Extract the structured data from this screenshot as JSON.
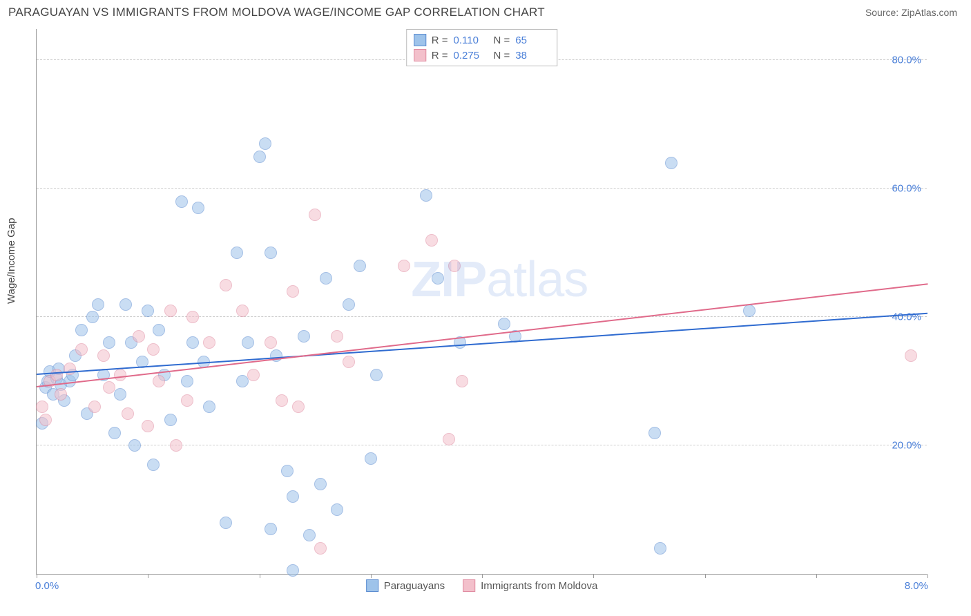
{
  "header": {
    "title": "PARAGUAYAN VS IMMIGRANTS FROM MOLDOVA WAGE/INCOME GAP CORRELATION CHART",
    "source": "Source: ZipAtlas.com"
  },
  "axes": {
    "ylabel": "Wage/Income Gap",
    "xlim": [
      0.0,
      8.0
    ],
    "ylim": [
      0.0,
      85.0
    ],
    "yticks": [
      20.0,
      40.0,
      60.0,
      80.0
    ],
    "ytick_labels": [
      "20.0%",
      "40.0%",
      "60.0%",
      "80.0%"
    ],
    "xtick_positions": [
      0.0,
      1.0,
      2.0,
      3.0,
      4.0,
      5.0,
      6.0,
      7.0,
      8.0
    ],
    "xtick_min_label": "0.0%",
    "xtick_max_label": "8.0%"
  },
  "style": {
    "background_color": "#ffffff",
    "grid_color": "#cccccc",
    "border_color": "#999999",
    "text_color": "#444444",
    "tick_color": "#4a7fd8",
    "point_radius": 9,
    "point_opacity": 0.55,
    "trend_width": 2
  },
  "series": [
    {
      "name": "Paraguayans",
      "fill_color": "#9ec3ea",
      "stroke_color": "#5a8bd0",
      "trend_color": "#2f6bd0",
      "r_label": "R =",
      "r_value": "0.110",
      "n_label": "N =",
      "n_value": "65",
      "trend": {
        "x1": 0.0,
        "y1": 31.0,
        "x2": 8.0,
        "y2": 40.5
      },
      "points": [
        {
          "x": 0.05,
          "y": 23.5
        },
        {
          "x": 0.08,
          "y": 29
        },
        {
          "x": 0.1,
          "y": 30
        },
        {
          "x": 0.12,
          "y": 31.5
        },
        {
          "x": 0.15,
          "y": 28
        },
        {
          "x": 0.18,
          "y": 30.5
        },
        {
          "x": 0.2,
          "y": 32
        },
        {
          "x": 0.22,
          "y": 29.5
        },
        {
          "x": 0.3,
          "y": 30
        },
        {
          "x": 0.35,
          "y": 34
        },
        {
          "x": 0.4,
          "y": 38
        },
        {
          "x": 0.45,
          "y": 25
        },
        {
          "x": 0.5,
          "y": 40
        },
        {
          "x": 0.55,
          "y": 42
        },
        {
          "x": 0.6,
          "y": 31
        },
        {
          "x": 0.65,
          "y": 36
        },
        {
          "x": 0.7,
          "y": 22
        },
        {
          "x": 0.8,
          "y": 42
        },
        {
          "x": 0.85,
          "y": 36
        },
        {
          "x": 0.88,
          "y": 20
        },
        {
          "x": 0.95,
          "y": 33
        },
        {
          "x": 1.0,
          "y": 41
        },
        {
          "x": 1.05,
          "y": 17
        },
        {
          "x": 1.1,
          "y": 38
        },
        {
          "x": 1.15,
          "y": 31
        },
        {
          "x": 1.2,
          "y": 24
        },
        {
          "x": 1.3,
          "y": 58
        },
        {
          "x": 1.35,
          "y": 30
        },
        {
          "x": 1.4,
          "y": 36
        },
        {
          "x": 1.45,
          "y": 57
        },
        {
          "x": 1.5,
          "y": 33
        },
        {
          "x": 1.55,
          "y": 26
        },
        {
          "x": 1.7,
          "y": 8
        },
        {
          "x": 1.8,
          "y": 50
        },
        {
          "x": 1.85,
          "y": 30
        },
        {
          "x": 1.9,
          "y": 36
        },
        {
          "x": 2.0,
          "y": 65
        },
        {
          "x": 2.05,
          "y": 67
        },
        {
          "x": 2.1,
          "y": 50
        },
        {
          "x": 2.1,
          "y": 7
        },
        {
          "x": 2.15,
          "y": 34
        },
        {
          "x": 2.25,
          "y": 16
        },
        {
          "x": 2.3,
          "y": 12
        },
        {
          "x": 2.3,
          "y": 0.5
        },
        {
          "x": 2.4,
          "y": 37
        },
        {
          "x": 2.45,
          "y": 6
        },
        {
          "x": 2.55,
          "y": 14
        },
        {
          "x": 2.6,
          "y": 46
        },
        {
          "x": 2.7,
          "y": 10
        },
        {
          "x": 2.8,
          "y": 42
        },
        {
          "x": 2.9,
          "y": 48
        },
        {
          "x": 3.0,
          "y": 18
        },
        {
          "x": 3.05,
          "y": 31
        },
        {
          "x": 3.5,
          "y": 59
        },
        {
          "x": 3.6,
          "y": 46
        },
        {
          "x": 3.8,
          "y": 36
        },
        {
          "x": 4.2,
          "y": 39
        },
        {
          "x": 4.3,
          "y": 37
        },
        {
          "x": 5.55,
          "y": 22
        },
        {
          "x": 5.6,
          "y": 4
        },
        {
          "x": 5.7,
          "y": 64
        },
        {
          "x": 6.4,
          "y": 41
        },
        {
          "x": 0.25,
          "y": 27
        },
        {
          "x": 0.32,
          "y": 31
        },
        {
          "x": 0.75,
          "y": 28
        }
      ]
    },
    {
      "name": "Immigrants from Moldova",
      "fill_color": "#f3c0cb",
      "stroke_color": "#e08aa0",
      "trend_color": "#e06a8a",
      "r_label": "R =",
      "r_value": "0.275",
      "n_label": "N =",
      "n_value": "38",
      "trend": {
        "x1": 0.0,
        "y1": 29.0,
        "x2": 8.0,
        "y2": 45.0
      },
      "points": [
        {
          "x": 0.05,
          "y": 26
        },
        {
          "x": 0.12,
          "y": 30
        },
        {
          "x": 0.18,
          "y": 31
        },
        {
          "x": 0.22,
          "y": 28
        },
        {
          "x": 0.3,
          "y": 32
        },
        {
          "x": 0.4,
          "y": 35
        },
        {
          "x": 0.52,
          "y": 26
        },
        {
          "x": 0.6,
          "y": 34
        },
        {
          "x": 0.65,
          "y": 29
        },
        {
          "x": 0.75,
          "y": 31
        },
        {
          "x": 0.82,
          "y": 25
        },
        {
          "x": 0.92,
          "y": 37
        },
        {
          "x": 1.0,
          "y": 23
        },
        {
          "x": 1.05,
          "y": 35
        },
        {
          "x": 1.1,
          "y": 30
        },
        {
          "x": 1.2,
          "y": 41
        },
        {
          "x": 1.25,
          "y": 20
        },
        {
          "x": 1.35,
          "y": 27
        },
        {
          "x": 1.4,
          "y": 40
        },
        {
          "x": 1.55,
          "y": 36
        },
        {
          "x": 1.7,
          "y": 45
        },
        {
          "x": 1.85,
          "y": 41
        },
        {
          "x": 1.95,
          "y": 31
        },
        {
          "x": 2.1,
          "y": 36
        },
        {
          "x": 2.2,
          "y": 27
        },
        {
          "x": 2.3,
          "y": 44
        },
        {
          "x": 2.35,
          "y": 26
        },
        {
          "x": 2.5,
          "y": 56
        },
        {
          "x": 2.55,
          "y": 4
        },
        {
          "x": 2.7,
          "y": 37
        },
        {
          "x": 2.8,
          "y": 33
        },
        {
          "x": 3.3,
          "y": 48
        },
        {
          "x": 3.55,
          "y": 52
        },
        {
          "x": 3.7,
          "y": 21
        },
        {
          "x": 3.75,
          "y": 48
        },
        {
          "x": 3.82,
          "y": 30
        },
        {
          "x": 7.85,
          "y": 34
        },
        {
          "x": 0.08,
          "y": 24
        }
      ]
    }
  ],
  "watermark": {
    "strong": "ZIP",
    "light": "atlas"
  },
  "legend_bottom": [
    {
      "label": "Paraguayans",
      "series_index": 0
    },
    {
      "label": "Immigrants from Moldova",
      "series_index": 1
    }
  ]
}
